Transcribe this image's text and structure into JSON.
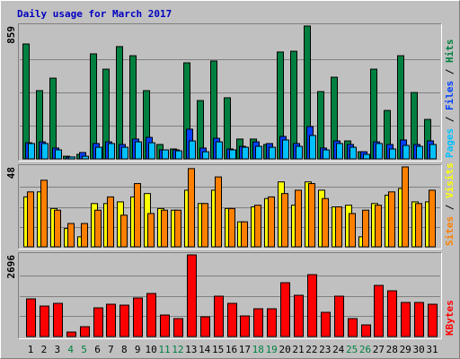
{
  "title": "Daily usage for March 2017",
  "separator": " / ",
  "chart_data": [
    {
      "type": "bar",
      "ylim": [
        0,
        859
      ],
      "yticks": [
        859
      ],
      "series": [
        {
          "name": "Hits",
          "color": "#008040",
          "values": [
            743,
            441,
            522,
            17,
            29,
            679,
            580,
            726,
            667,
            441,
            93,
            64,
            621,
            377,
            633,
            395,
            128,
            128,
            93,
            691,
            696,
            859,
            435,
            528,
            116,
            46,
            580,
            313,
            667,
            429,
            255
          ]
        },
        {
          "name": "Files",
          "color": "#0040ff",
          "values": [
            104,
            110,
            70,
            12,
            41,
            99,
            110,
            93,
            128,
            139,
            58,
            58,
            192,
            70,
            133,
            64,
            81,
            110,
            99,
            145,
            99,
            209,
            70,
            116,
            93,
            46,
            110,
            93,
            122,
            93,
            116
          ]
        },
        {
          "name": "Pages",
          "color": "#00c0ff",
          "values": [
            99,
            99,
            58,
            12,
            17,
            75,
            99,
            75,
            110,
            104,
            58,
            52,
            116,
            46,
            110,
            58,
            75,
            81,
            75,
            122,
            81,
            151,
            58,
            99,
            75,
            29,
            99,
            64,
            87,
            81,
            93
          ]
        }
      ]
    },
    {
      "type": "bar",
      "ylim": [
        0,
        48
      ],
      "yticks": [
        48
      ],
      "series": [
        {
          "name": "Visits",
          "color": "#ffff00",
          "values": [
            30,
            33,
            23,
            11,
            6,
            26,
            26,
            27,
            30,
            32,
            23,
            22,
            34,
            26,
            34,
            23,
            15,
            24,
            29,
            39,
            25,
            39,
            34,
            24,
            25,
            6,
            26,
            31,
            35,
            27,
            27
          ]
        },
        {
          "name": "Sites",
          "color": "#ff8000",
          "values": [
            33,
            40,
            22,
            14,
            14,
            22,
            30,
            19,
            38,
            20,
            22,
            22,
            47,
            26,
            42,
            23,
            15,
            25,
            30,
            32,
            34,
            38,
            29,
            24,
            20,
            22,
            25,
            33,
            48,
            26,
            34
          ]
        }
      ]
    },
    {
      "type": "bar",
      "ylim": [
        0,
        2696
      ],
      "yticks": [
        2696
      ],
      "categories": [
        "1",
        "2",
        "3",
        "4",
        "5",
        "6",
        "7",
        "8",
        "9",
        "10",
        "11",
        "12",
        "13",
        "14",
        "15",
        "16",
        "17",
        "18",
        "19",
        "20",
        "21",
        "22",
        "23",
        "24",
        "25",
        "26",
        "27",
        "28",
        "29",
        "30",
        "31"
      ],
      "category_colors": [
        "#000000",
        "#000000",
        "#000000",
        "#008040",
        "#008040",
        "#000000",
        "#000000",
        "#000000",
        "#000000",
        "#000000",
        "#008040",
        "#008040",
        "#000000",
        "#000000",
        "#000000",
        "#000000",
        "#000000",
        "#008040",
        "#008040",
        "#000000",
        "#000000",
        "#000000",
        "#000000",
        "#000000",
        "#008040",
        "#008040",
        "#000000",
        "#000000",
        "#000000",
        "#000000",
        "#000000"
      ],
      "series": [
        {
          "name": "KBytes",
          "color": "#ff0000",
          "values": [
            1244,
            1007,
            1096,
            148,
            326,
            948,
            1067,
            1037,
            1274,
            1422,
            711,
            593,
            2696,
            652,
            1333,
            1096,
            681,
            918,
            918,
            1778,
            1363,
            2044,
            800,
            1333,
            593,
            385,
            1689,
            1511,
            1126,
            1126,
            1067
          ]
        }
      ]
    }
  ]
}
